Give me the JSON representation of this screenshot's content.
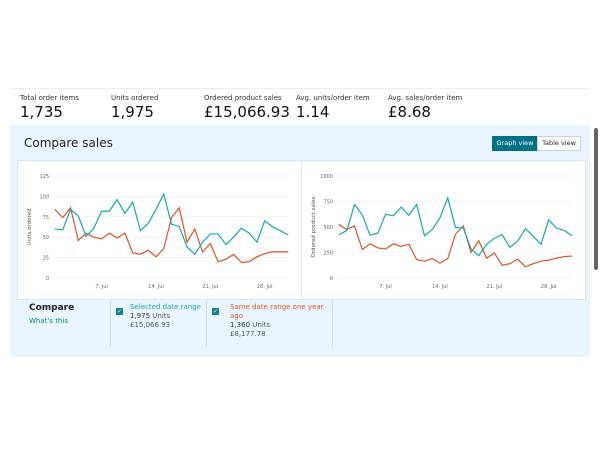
{
  "stats": [
    {
      "label": "Total order items",
      "value": "1,735"
    },
    {
      "label": "Units ordered",
      "value": "1,975"
    },
    {
      "label": "Ordered product sales",
      "value": "£15,066.93"
    },
    {
      "label": "Avg. units/order item",
      "value": "1.14"
    },
    {
      "label": "Avg. sales/order item",
      "value": "£8.68"
    }
  ],
  "panel": {
    "title": "Compare sales",
    "graph_view": "Graph view",
    "table_view": "Table view"
  },
  "colors": {
    "selected": "#1aa6b0",
    "previous": "#d9532b"
  },
  "chart_data": [
    {
      "type": "line",
      "ylabel": "Units ordered",
      "ylim": [
        0,
        125
      ],
      "yticks": [
        "0",
        "25",
        "50",
        "75",
        "100",
        "125"
      ],
      "xticks": [
        {
          "label": "7. Jul",
          "day": 7
        },
        {
          "label": "14. Jul",
          "day": 14
        },
        {
          "label": "21. Jul",
          "day": 21
        },
        {
          "label": "28. Jul",
          "day": 28
        }
      ],
      "x": [
        1,
        2,
        3,
        4,
        5,
        6,
        7,
        8,
        9,
        10,
        11,
        12,
        13,
        14,
        15,
        16,
        17,
        18,
        19,
        20,
        21,
        22,
        23,
        24,
        25,
        26,
        27,
        28,
        29,
        30,
        31
      ],
      "series": [
        {
          "name": "Selected date range",
          "values": [
            60,
            59,
            84,
            76,
            51,
            61,
            82,
            82,
            96,
            79,
            93,
            58,
            67,
            84,
            103,
            66,
            63,
            38,
            29,
            44,
            54,
            54,
            41,
            50,
            61,
            55,
            44,
            70,
            63,
            58,
            53
          ]
        },
        {
          "name": "Same date range one year ago",
          "values": [
            84,
            74,
            86,
            46,
            55,
            50,
            48,
            55,
            49,
            55,
            31,
            29,
            34,
            26,
            36,
            74,
            86,
            44,
            60,
            32,
            42,
            20,
            23,
            29,
            19,
            20,
            26,
            30,
            32,
            32,
            32
          ]
        }
      ]
    },
    {
      "type": "line",
      "ylabel": "Ordered product sales",
      "ylim": [
        0,
        1000
      ],
      "yticks": [
        "0",
        "250",
        "500",
        "750",
        "1000"
      ],
      "xticks": [
        {
          "label": "7. Jul",
          "day": 7
        },
        {
          "label": "14. Jul",
          "day": 14
        },
        {
          "label": "21. Jul",
          "day": 21
        },
        {
          "label": "28. Jul",
          "day": 28
        }
      ],
      "x": [
        1,
        2,
        3,
        4,
        5,
        6,
        7,
        8,
        9,
        10,
        11,
        12,
        13,
        14,
        15,
        16,
        17,
        18,
        19,
        20,
        21,
        22,
        23,
        24,
        25,
        26,
        27,
        28,
        29,
        30,
        31
      ],
      "series": [
        {
          "name": "Selected date range",
          "values": [
            425,
            465,
            720,
            620,
            420,
            440,
            625,
            610,
            695,
            615,
            720,
            415,
            475,
            590,
            785,
            495,
            490,
            285,
            220,
            330,
            390,
            425,
            300,
            360,
            485,
            410,
            330,
            570,
            490,
            465,
            415
          ]
        },
        {
          "name": "Same date range one year ago",
          "values": [
            525,
            475,
            510,
            280,
            335,
            295,
            285,
            335,
            310,
            330,
            180,
            165,
            190,
            145,
            190,
            430,
            510,
            250,
            365,
            195,
            245,
            125,
            140,
            185,
            110,
            140,
            165,
            175,
            195,
            210,
            215
          ]
        }
      ]
    }
  ],
  "compare": {
    "title": "Compare",
    "whats_this": "What's this",
    "selected": {
      "label": "Selected date range",
      "units": "1,975",
      "units_word": "Units",
      "sales": "£15,066.93"
    },
    "previous": {
      "label": "Same date range one year ago",
      "units": "1,360",
      "units_word": "Units",
      "sales": "£8,177.78"
    }
  }
}
